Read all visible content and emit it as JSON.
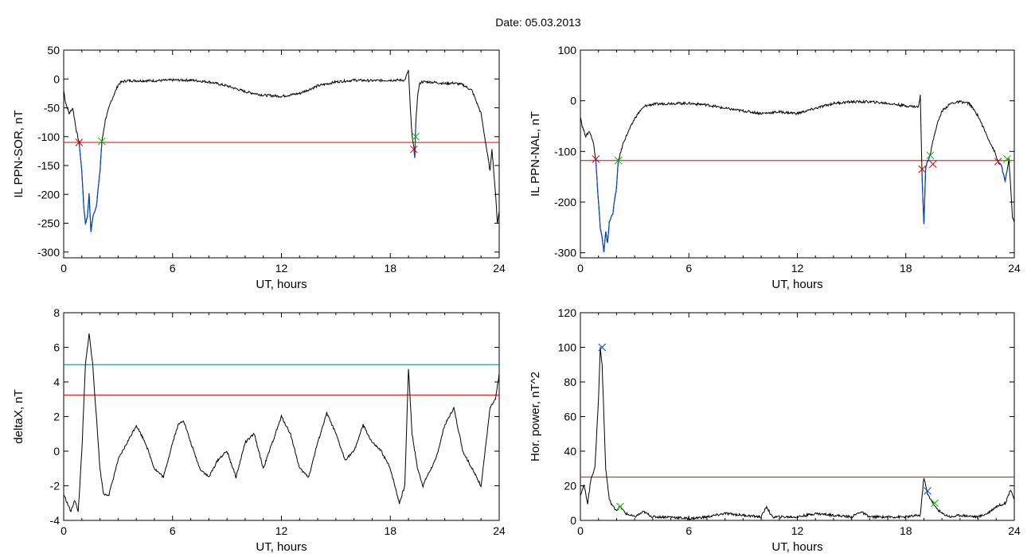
{
  "page_title": "Date:  05.03.2013",
  "colors": {
    "trace": "#000000",
    "threshold": "#dd0000",
    "threshold2": "#008080",
    "storm": "#0044cc",
    "marker_start": "#dd0000",
    "marker_end": "#00bb00",
    "marker_peak": "#0044cc"
  },
  "chart_data": [
    {
      "type": "line",
      "panel": "top-left",
      "xlabel": "UT, hours",
      "ylabel": "IL PPN-SOR, nT",
      "xlim": [
        0,
        24
      ],
      "ylim": [
        -310,
        50
      ],
      "xticks": [
        0,
        6,
        12,
        18,
        24
      ],
      "yticks": [
        50,
        0,
        -50,
        -100,
        -150,
        -200,
        -250,
        -300
      ],
      "series": [
        {
          "values_x": [
            0,
            0.1,
            0.3,
            0.5,
            0.7,
            0.85,
            1.0,
            1.1,
            1.2,
            1.3,
            1.4,
            1.5,
            1.6,
            1.8,
            2.0,
            2.1,
            2.3,
            2.6,
            3.0,
            3.2,
            3.5,
            4.0,
            5.0,
            6.0,
            7.0,
            8.0,
            9.0,
            10.0,
            11.0,
            12.0,
            13.0,
            14.0,
            15.0,
            16.0,
            17.0,
            18.0,
            18.8,
            19.0,
            19.1,
            19.2,
            19.3,
            19.35,
            19.4,
            19.5,
            19.6,
            19.7,
            20.0,
            20.5,
            21.0,
            21.5,
            22.0,
            22.5,
            23.0,
            23.3,
            23.5,
            23.6,
            23.8,
            23.9,
            24.0
          ],
          "values_y": [
            -20,
            -40,
            -60,
            -50,
            -90,
            -110,
            -160,
            -220,
            -250,
            -240,
            -200,
            -265,
            -240,
            -220,
            -160,
            -110,
            -70,
            -40,
            -10,
            -5,
            -3,
            -3,
            -3,
            -2,
            -2,
            -5,
            -12,
            -22,
            -28,
            -30,
            -25,
            -12,
            -5,
            -2,
            -3,
            -2,
            -2,
            15,
            -50,
            -100,
            -120,
            -135,
            -80,
            -30,
            -10,
            -5,
            -5,
            -6,
            -8,
            -7,
            -10,
            -20,
            -60,
            -120,
            -160,
            -120,
            -200,
            -250,
            -230
          ]
        }
      ],
      "threshold": -110,
      "markers": [
        {
          "x": 0.85,
          "y": -110,
          "color": "red"
        },
        {
          "x": 2.1,
          "y": -108,
          "color": "green"
        },
        {
          "x": 19.3,
          "y": -122,
          "color": "red"
        },
        {
          "x": 19.4,
          "y": -100,
          "color": "green"
        }
      ],
      "storm_intervals": [
        [
          0.85,
          2.1
        ],
        [
          19.3,
          19.4
        ]
      ]
    },
    {
      "type": "line",
      "panel": "top-right",
      "xlabel": "UT, hours",
      "ylabel": "IL PPN-NAL, nT",
      "xlim": [
        0,
        24
      ],
      "ylim": [
        -310,
        100
      ],
      "xticks": [
        0,
        6,
        12,
        18,
        24
      ],
      "yticks": [
        100,
        0,
        -100,
        -200,
        -300
      ],
      "series": [
        {
          "values_x": [
            0,
            0.1,
            0.3,
            0.5,
            0.7,
            0.85,
            1.0,
            1.1,
            1.2,
            1.3,
            1.4,
            1.5,
            1.6,
            1.8,
            2.0,
            2.1,
            2.4,
            2.8,
            3.0,
            3.3,
            3.6,
            4.0,
            5.0,
            6.0,
            7.0,
            8.0,
            9.0,
            10.0,
            11.0,
            12.0,
            13.0,
            14.0,
            15.0,
            16.0,
            17.0,
            18.0,
            18.7,
            18.8,
            18.9,
            19.0,
            19.1,
            19.2,
            19.35,
            19.5,
            19.7,
            20.0,
            20.5,
            21.0,
            21.5,
            22.0,
            22.5,
            22.9,
            23.1,
            23.3,
            23.5,
            23.7,
            23.9,
            24.0
          ],
          "values_y": [
            -30,
            -50,
            -70,
            -60,
            -80,
            -115,
            -200,
            -250,
            -270,
            -300,
            -260,
            -280,
            -240,
            -220,
            -170,
            -118,
            -80,
            -50,
            -35,
            -20,
            -10,
            -7,
            -5,
            -5,
            -8,
            -15,
            -20,
            -25,
            -22,
            -25,
            -15,
            -5,
            -2,
            -2,
            -5,
            -10,
            -12,
            10,
            -150,
            -245,
            -130,
            -120,
            -105,
            -80,
            -50,
            -20,
            -5,
            -2,
            -5,
            -30,
            -70,
            -100,
            -120,
            -130,
            -160,
            -115,
            -230,
            -240
          ]
        }
      ],
      "threshold": -118,
      "markers": [
        {
          "x": 0.85,
          "y": -115,
          "color": "red"
        },
        {
          "x": 2.1,
          "y": -118,
          "color": "green"
        },
        {
          "x": 18.9,
          "y": -135,
          "color": "red"
        },
        {
          "x": 19.35,
          "y": -108,
          "color": "green"
        },
        {
          "x": 19.5,
          "y": -125,
          "color": "red"
        },
        {
          "x": 23.1,
          "y": -120,
          "color": "red"
        },
        {
          "x": 23.6,
          "y": -115,
          "color": "green"
        }
      ],
      "storm_intervals": [
        [
          0.85,
          2.1
        ],
        [
          18.9,
          19.35
        ],
        [
          23.1,
          23.6
        ]
      ]
    },
    {
      "type": "line",
      "panel": "bottom-left",
      "xlabel": "UT, hours",
      "ylabel": "deltaX, nT",
      "xlim": [
        0,
        24
      ],
      "ylim": [
        -4,
        8
      ],
      "xticks": [
        0,
        6,
        12,
        18,
        24
      ],
      "yticks": [
        8,
        6,
        4,
        2,
        0,
        -2,
        -4
      ],
      "series": [
        {
          "values_x": [
            0,
            0.2,
            0.4,
            0.6,
            0.8,
            1.0,
            1.2,
            1.4,
            1.6,
            1.8,
            2.0,
            2.2,
            2.5,
            3.0,
            3.5,
            4.0,
            4.5,
            5.0,
            5.5,
            6.0,
            6.3,
            6.6,
            7.0,
            7.5,
            8.0,
            8.5,
            9.0,
            9.5,
            10.0,
            10.5,
            11.0,
            11.5,
            12.0,
            12.5,
            13.0,
            13.5,
            14.0,
            14.5,
            15.0,
            15.5,
            16.0,
            16.5,
            17.0,
            17.5,
            18.0,
            18.5,
            18.8,
            19.0,
            19.2,
            19.5,
            19.8,
            20.0,
            20.5,
            21.0,
            21.5,
            22.0,
            22.5,
            23.0,
            23.5,
            23.8,
            24.0
          ],
          "values_y": [
            -2.5,
            -3.0,
            -3.5,
            -2.8,
            -3.5,
            0,
            5.0,
            6.8,
            5.0,
            2.0,
            -1.0,
            -2.5,
            -2.5,
            -0.5,
            0.5,
            1.5,
            0.5,
            -1.0,
            -1.5,
            0.5,
            1.5,
            1.8,
            0.5,
            -1.0,
            -1.5,
            -0.5,
            0,
            -1.5,
            0.5,
            1.0,
            -1.0,
            0.5,
            2.0,
            1.0,
            -1.0,
            -1.5,
            0.5,
            2.2,
            1.0,
            -0.5,
            0,
            1.5,
            0.5,
            0,
            -1.0,
            -3.0,
            -2.0,
            4.8,
            1.0,
            -1.0,
            -2.0,
            -1.5,
            -0.5,
            1.5,
            2.5,
            0,
            -1.0,
            -2.0,
            2.5,
            3.0,
            4.5
          ]
        }
      ],
      "threshold": 3.25,
      "threshold2": 5.0
    },
    {
      "type": "line",
      "panel": "bottom-right",
      "xlabel": "UT, hours",
      "ylabel": "Hor. power, nT^2",
      "xlim": [
        0,
        24
      ],
      "ylim": [
        0,
        120
      ],
      "xticks": [
        0,
        6,
        12,
        18,
        24
      ],
      "yticks": [
        120,
        100,
        80,
        60,
        40,
        20,
        0
      ],
      "series": [
        {
          "values_x": [
            0,
            0.2,
            0.4,
            0.6,
            0.8,
            1.0,
            1.1,
            1.2,
            1.3,
            1.4,
            1.6,
            1.8,
            2.0,
            2.2,
            2.5,
            3.0,
            3.5,
            4.0,
            5.0,
            6.0,
            7.0,
            8.0,
            9.0,
            10.0,
            10.3,
            10.6,
            11.0,
            12.0,
            13.0,
            14.0,
            15.0,
            15.5,
            16.0,
            17.0,
            18.0,
            18.8,
            19.0,
            19.2,
            19.4,
            19.6,
            20.0,
            20.5,
            21.0,
            22.0,
            22.5,
            23.0,
            23.5,
            23.8,
            24.0
          ],
          "values_y": [
            15,
            20,
            10,
            25,
            30,
            70,
            100,
            90,
            60,
            30,
            12,
            8,
            6,
            8,
            4,
            2,
            5,
            2,
            2,
            1,
            2,
            4,
            3,
            2,
            8,
            2,
            2,
            2,
            4,
            3,
            2,
            5,
            2,
            2,
            2,
            3,
            25,
            15,
            12,
            8,
            4,
            2,
            3,
            2,
            4,
            8,
            10,
            18,
            12
          ]
        }
      ],
      "threshold": 25,
      "markers": [
        {
          "x": 1.2,
          "y": 100,
          "color": "blue"
        },
        {
          "x": 2.2,
          "y": 8,
          "color": "green"
        },
        {
          "x": 19.2,
          "y": 17,
          "color": "blue"
        },
        {
          "x": 19.6,
          "y": 10,
          "color": "green"
        }
      ]
    }
  ]
}
